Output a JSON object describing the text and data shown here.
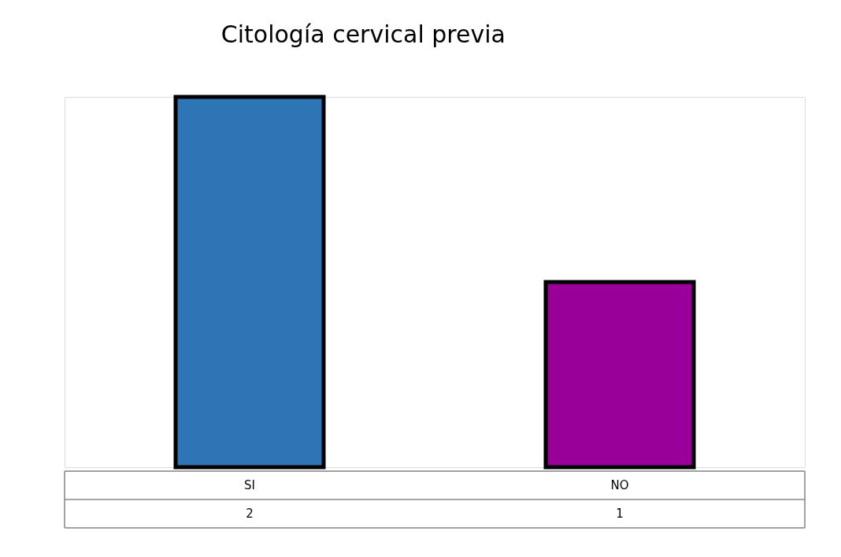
{
  "chart_data": {
    "type": "bar",
    "title": "Citología cervical previa",
    "categories": [
      "SI",
      "NO"
    ],
    "values": [
      2,
      1
    ],
    "colors": [
      "#2e75b6",
      "#990099"
    ],
    "tick_labels": "x",
    "data_labels": true,
    "grid": false
  }
}
